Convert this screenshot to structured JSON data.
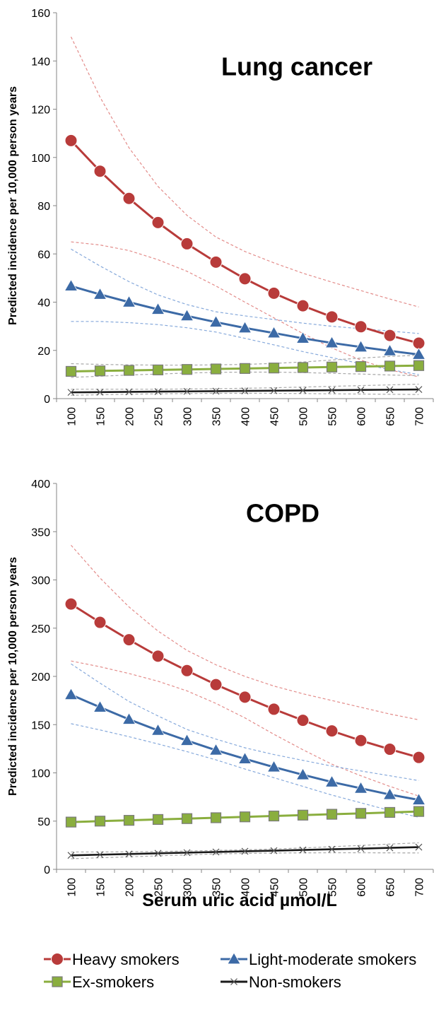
{
  "xlabel": "Serum uric acid µmol/L",
  "colors": {
    "heavy": "#B83B3A",
    "light": "#3C6AA6",
    "ex": "#8AAE3E",
    "non": "#1a1a1a",
    "ci_heavy": "#E38C8A",
    "ci_light": "#86A9DB",
    "ci_ex": "#A8A8A8",
    "ci_non": "#A8A8A8"
  },
  "legend": [
    {
      "key": "heavy",
      "label": "Heavy smokers",
      "marker": "circle"
    },
    {
      "key": "light",
      "label": "Light-moderate smokers",
      "marker": "triangle"
    },
    {
      "key": "ex",
      "label": "Ex-smokers",
      "marker": "square"
    },
    {
      "key": "non",
      "label": "Non-smokers",
      "marker": "x"
    }
  ],
  "chart_data": [
    {
      "type": "line",
      "title": "Lung cancer",
      "ylabel": "Predicted incidence per 10,000 person years",
      "x": [
        100,
        150,
        200,
        250,
        300,
        350,
        400,
        450,
        500,
        550,
        600,
        650,
        700
      ],
      "ylim": [
        0,
        160
      ],
      "yticks": [
        0,
        20,
        40,
        60,
        80,
        100,
        120,
        140,
        160
      ],
      "series": [
        {
          "name": "Heavy smokers",
          "key": "heavy",
          "marker": "circle",
          "values": [
            107,
            94.3,
            83,
            73,
            64.2,
            56.6,
            49.7,
            43.7,
            38.5,
            33.9,
            29.8,
            26.2,
            23
          ],
          "ci_upper": [
            150,
            125,
            104,
            88,
            76,
            67,
            61,
            56.3,
            52,
            48.3,
            44.8,
            41.3,
            38
          ],
          "ci_lower": [
            65,
            63.7,
            61.4,
            57.6,
            52.8,
            46.7,
            40,
            33.5,
            27,
            21,
            16,
            12,
            9
          ]
        },
        {
          "name": "Light-moderate smokers",
          "key": "light",
          "marker": "triangle",
          "values": [
            46.7,
            43.2,
            40,
            37,
            34.3,
            31.7,
            29.3,
            27.2,
            25,
            23.1,
            21.4,
            19.8,
            18.3
          ],
          "ci_upper": [
            62,
            55,
            48.5,
            43,
            39,
            36,
            34.3,
            32.8,
            31.3,
            30,
            29,
            28,
            27
          ],
          "ci_lower": [
            32,
            32,
            31.5,
            30.7,
            29.4,
            27.6,
            25,
            22.3,
            19.5,
            17,
            14.5,
            12,
            10
          ]
        },
        {
          "name": "Ex-smokers",
          "key": "ex",
          "marker": "square",
          "values": [
            11.3,
            11.5,
            11.7,
            11.9,
            12.1,
            12.3,
            12.5,
            12.7,
            12.9,
            13.1,
            13.3,
            13.5,
            13.7
          ],
          "ci_upper": [
            14.5,
            14.2,
            14,
            13.9,
            13.9,
            14,
            14.2,
            14.6,
            15.2,
            16,
            16.8,
            17.5,
            18
          ],
          "ci_lower": [
            8.8,
            9.3,
            9.8,
            10.2,
            10.6,
            10.9,
            11,
            11,
            10.8,
            10.5,
            10.2,
            9.8,
            9.5
          ]
        },
        {
          "name": "Non-smokers",
          "key": "non",
          "marker": "x",
          "values": [
            2.6,
            2.7,
            2.8,
            2.9,
            3.0,
            3.1,
            3.2,
            3.3,
            3.4,
            3.5,
            3.6,
            3.7,
            3.8
          ],
          "ci_upper": [
            3.9,
            3.9,
            3.9,
            3.9,
            4.0,
            4.1,
            4.3,
            4.5,
            4.8,
            5.1,
            5.4,
            5.7,
            6.0
          ],
          "ci_lower": [
            1.4,
            1.6,
            1.8,
            2.0,
            2.1,
            2.2,
            2.2,
            2.2,
            2.1,
            2.0,
            1.9,
            1.8,
            1.7
          ]
        }
      ]
    },
    {
      "type": "line",
      "title": "COPD",
      "ylabel": "Predicted incidence per 10,000 person years",
      "x": [
        100,
        150,
        200,
        250,
        300,
        350,
        400,
        450,
        500,
        550,
        600,
        650,
        700
      ],
      "ylim": [
        0,
        400
      ],
      "yticks": [
        0,
        50,
        100,
        150,
        200,
        250,
        300,
        350,
        400
      ],
      "series": [
        {
          "name": "Heavy smokers",
          "key": "heavy",
          "marker": "circle",
          "values": [
            275,
            256,
            238,
            221,
            206,
            191.5,
            178.5,
            166,
            154.5,
            143.5,
            133.5,
            124.5,
            116
          ],
          "ci_upper": [
            336,
            302,
            272,
            247,
            227,
            212,
            200,
            190,
            182,
            175,
            168,
            161,
            155
          ],
          "ci_lower": [
            216,
            210,
            203,
            195,
            185,
            172,
            157,
            140,
            124,
            109,
            97,
            86,
            76
          ]
        },
        {
          "name": "Light-moderate smokers",
          "key": "light",
          "marker": "triangle",
          "values": [
            181,
            168,
            155.5,
            144,
            133.5,
            123.5,
            114.5,
            106,
            98,
            90.5,
            84,
            77.5,
            72
          ],
          "ci_upper": [
            213,
            193,
            174,
            159,
            145,
            135,
            126,
            119,
            113,
            107,
            102,
            97,
            92
          ],
          "ci_lower": [
            151,
            144.5,
            137.5,
            130,
            122,
            113.5,
            104,
            95,
            86,
            77,
            69,
            61,
            54
          ]
        },
        {
          "name": "Ex-smokers",
          "key": "ex",
          "marker": "square",
          "values": [
            49,
            50,
            50.8,
            51.7,
            52.6,
            53.5,
            54.4,
            55.3,
            56.2,
            57.1,
            58,
            59,
            60
          ]
        },
        {
          "name": "Non-smokers",
          "key": "non",
          "marker": "x",
          "values": [
            14.5,
            15.2,
            15.9,
            16.6,
            17.3,
            18,
            18.7,
            19.4,
            20.1,
            20.8,
            21.5,
            22.3,
            23
          ],
          "ci_upper": [
            18,
            18,
            18.2,
            18.5,
            19,
            19.6,
            20.3,
            21.1,
            22.2,
            23.5,
            24.8,
            26.2,
            27.5
          ],
          "ci_lower": [
            11,
            12,
            13,
            14,
            15,
            16,
            16.5,
            16.9,
            17.1,
            17.2,
            17.2,
            17.1,
            17
          ]
        }
      ]
    }
  ]
}
